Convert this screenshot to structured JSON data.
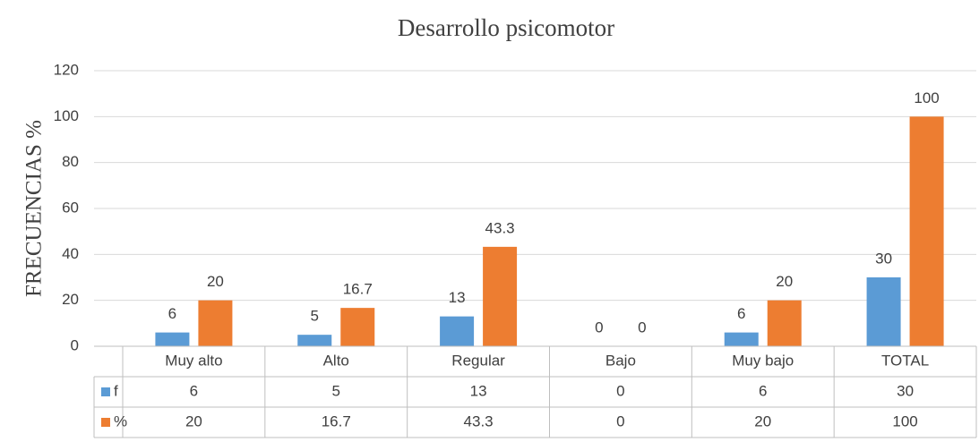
{
  "chart_data": {
    "type": "bar",
    "title": "Desarrollo psicomotor",
    "y_label": "FRECUENCIAS %",
    "categories": [
      "Muy alto",
      "Alto",
      "Regular",
      "Bajo",
      "Muy bajo",
      "TOTAL"
    ],
    "series": [
      {
        "name": "f",
        "color": "#5b9bd5",
        "values": [
          6,
          5,
          13,
          0,
          6,
          30
        ]
      },
      {
        "name": "%",
        "color": "#ed7d31",
        "values": [
          20,
          16.7,
          43.3,
          0,
          20,
          100
        ]
      }
    ],
    "ylim": [
      0,
      120
    ],
    "yticks": [
      0,
      20,
      40,
      60,
      80,
      100,
      120
    ],
    "grid": true,
    "data_table": true
  }
}
